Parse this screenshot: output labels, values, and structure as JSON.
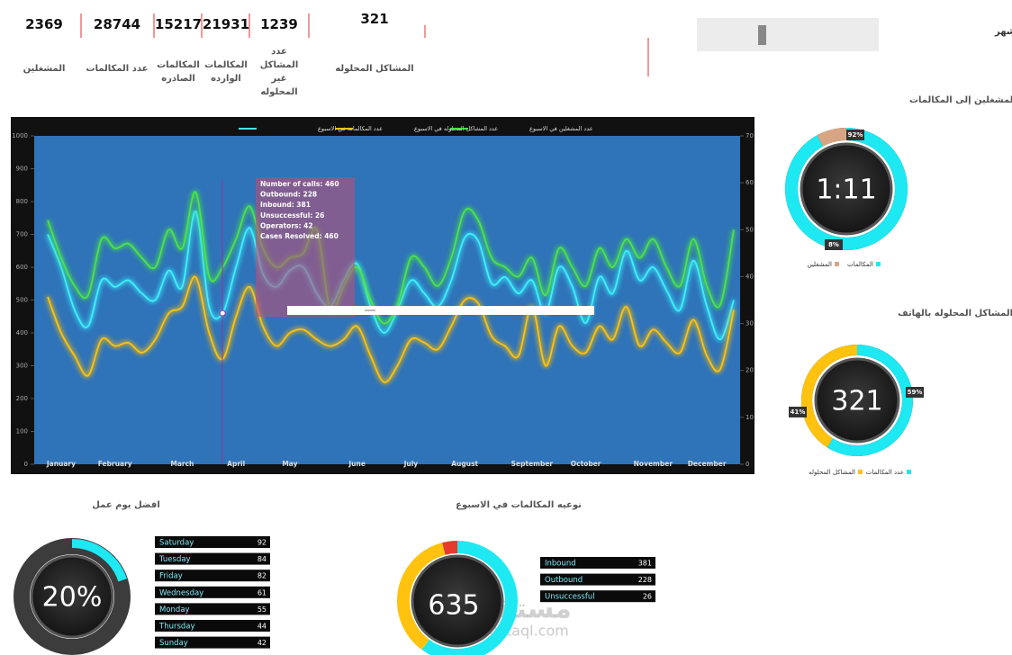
{
  "kpis": [
    {
      "value": 2369,
      "label": "المشغلين"
    },
    {
      "value": 28744,
      "label": "عدد المكالمات"
    },
    {
      "value": 15217,
      "label": "المكالمات الصادره"
    },
    {
      "value": 21931,
      "label": "المكالمات الوارده"
    },
    {
      "value": 1239,
      "label": "عدد المشاكل غير المحلوله"
    },
    {
      "value": 321,
      "label": "المشاكل المحلوله"
    }
  ],
  "month_selector": {
    "label": "إضغط هنا لإختيار الشهر"
  },
  "watermark": {
    "arabic": "مستقل",
    "latin": "mostaql.com"
  },
  "chart_data": [
    {
      "type": "line",
      "categories": [
        null,
        "January",
        null,
        null,
        null,
        "February",
        null,
        null,
        null,
        null,
        "March",
        null,
        null,
        null,
        "April",
        null,
        null,
        null,
        "May",
        null,
        null,
        null,
        null,
        "June",
        null,
        null,
        null,
        "July",
        null,
        null,
        null,
        "August",
        null,
        null,
        null,
        null,
        "September",
        null,
        null,
        null,
        "October",
        null,
        null,
        null,
        null,
        "November",
        null,
        null,
        null,
        "December",
        null,
        null
      ],
      "series": [
        {
          "name": "عدد المكالمات في الاسبوع",
          "color": "#3ef0ff",
          "axis": "y",
          "values": [
            700,
            600,
            470,
            420,
            560,
            540,
            560,
            520,
            500,
            590,
            540,
            770,
            480,
            460,
            600,
            720,
            580,
            540,
            590,
            600,
            520,
            480,
            560,
            610,
            480,
            400,
            470,
            560,
            520,
            480,
            560,
            690,
            680,
            550,
            570,
            520,
            560,
            460,
            600,
            540,
            430,
            570,
            520,
            650,
            560,
            600,
            530,
            470,
            620,
            480,
            380,
            500
          ]
        },
        {
          "name": "عدد المشاكل المحلوله في الاسبوع",
          "color": "#ffc20e",
          "axis": "y",
          "values": [
            510,
            400,
            330,
            270,
            380,
            360,
            370,
            340,
            380,
            460,
            480,
            570,
            400,
            320,
            450,
            540,
            420,
            360,
            400,
            410,
            380,
            360,
            380,
            420,
            330,
            250,
            300,
            380,
            370,
            350,
            420,
            500,
            490,
            390,
            360,
            330,
            480,
            300,
            420,
            360,
            340,
            420,
            380,
            480,
            360,
            410,
            370,
            340,
            440,
            330,
            290,
            470
          ]
        },
        {
          "name": "عدد المشغلين في الاسبوع",
          "color": "#4be34b",
          "axis": "y2",
          "values": [
            52,
            44,
            38,
            36,
            48,
            46,
            47,
            44,
            42,
            50,
            46,
            58,
            40,
            42,
            48,
            55,
            46,
            42,
            44,
            45,
            50,
            33,
            38,
            42,
            35,
            30,
            34,
            44,
            42,
            38,
            44,
            54,
            52,
            44,
            42,
            40,
            44,
            36,
            46,
            42,
            38,
            46,
            42,
            48,
            44,
            48,
            42,
            38,
            48,
            38,
            34,
            50
          ]
        }
      ],
      "ylim": [
        0,
        1000
      ],
      "yticks": [
        0,
        100,
        200,
        300,
        400,
        500,
        600,
        700,
        800,
        900,
        1000
      ],
      "y2lim": [
        0,
        70
      ],
      "y2ticks": [
        0,
        10,
        20,
        30,
        40,
        50,
        60,
        70
      ],
      "tooltip": {
        "lines": [
          "Number of calls: 460",
          "Outbound: 228",
          "Inbound: 381",
          "Unsuccessful: 26",
          "Operators: 42",
          "Cases Resolved: 460"
        ]
      }
    },
    {
      "type": "donut",
      "title": "نسبة المشغلين إلى المكالمات",
      "center_label": "1:11",
      "categories": [
        "المكالمات",
        "المشغلين"
      ],
      "values": [
        92,
        8
      ],
      "value_labels": [
        "92%",
        "8%"
      ],
      "colors": [
        "#1ee8f2",
        "#d8a584"
      ]
    },
    {
      "type": "donut",
      "title": "المشاكل المحلوله بالهاتف",
      "center_label": "321",
      "categories": [
        "عدد المكالمات",
        "المشاكل المحلوله"
      ],
      "values": [
        59,
        41
      ],
      "value_labels": [
        "59%",
        "41%"
      ],
      "colors": [
        "#1ee8f2",
        "#ffc20e"
      ]
    },
    {
      "type": "gauge",
      "title": "افضل يوم عمل",
      "center_label": "20%",
      "categories": [
        "Saturday",
        "Tuesday",
        "Friday",
        "Wednesday",
        "Monday",
        "Thursday",
        "Sunday"
      ],
      "values": [
        92,
        84,
        82,
        61,
        55,
        44,
        42
      ],
      "color": "#1ee8f2"
    },
    {
      "type": "donut_table",
      "title": "نوعيه المكالمات في الاسبوع",
      "center_label": "635",
      "categories": [
        "Inbound",
        "Outbound",
        "Unsuccessful"
      ],
      "values": [
        381,
        228,
        26
      ],
      "colors": [
        "#1ee8f2",
        "#ffc20e",
        "#e53a2c"
      ]
    }
  ]
}
